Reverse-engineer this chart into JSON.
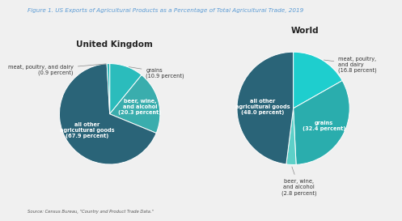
{
  "title": "Figure 1. US Exports of Agricultural Products as a Percentage of Total Agricultural Trade, 2019",
  "title_color": "#5b9bd5",
  "source_text": "Source: Census Bureau, \"Country and Product Trade Data.\"",
  "uk_title": "United Kingdom",
  "world_title": "World",
  "uk_slices": [
    {
      "label": "grains\n(10.9 percent)",
      "value": 10.9,
      "color": "#2bbcbc",
      "label_inside": false
    },
    {
      "label": "beer, wine,\nand alcohol\n(20.3 percent)",
      "value": 20.3,
      "color": "#3aadad",
      "label_inside": true
    },
    {
      "label": "all other\nagricultural goods\n(67.9 percent)",
      "value": 67.9,
      "color": "#2a6478",
      "label_inside": true
    },
    {
      "label": "meat, poultry, and dairy\n(0.9 percent)",
      "value": 0.9,
      "color": "#2bbcbc",
      "label_inside": false
    }
  ],
  "world_slices": [
    {
      "label": "meat, poultry,\nand dairy\n(16.8 percent)",
      "value": 16.8,
      "color": "#1ecece",
      "label_inside": false
    },
    {
      "label": "grains\n(32.4 percent)",
      "value": 32.4,
      "color": "#2aadad",
      "label_inside": true
    },
    {
      "label": "beer, wine,\nand alcohol\n(2.8 percent)",
      "value": 2.8,
      "color": "#5dd0c8",
      "label_inside": false
    },
    {
      "label": "all other\nagricultural goods\n(48.0 percent)",
      "value": 48.0,
      "color": "#2a6478",
      "label_inside": true
    }
  ],
  "bg_color": "#f0f0f0",
  "label_fontsize": 5.5,
  "subtitle_fontsize": 7.5,
  "title_fontsize": 5.2
}
